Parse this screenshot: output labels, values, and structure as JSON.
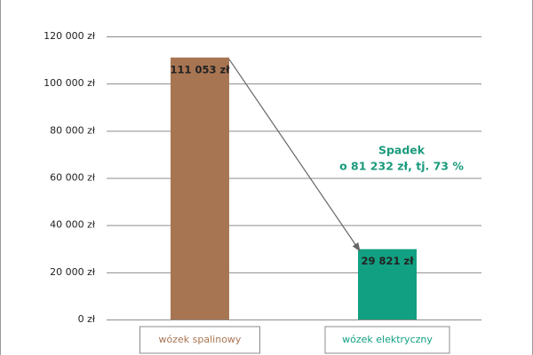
{
  "chart_data": {
    "type": "bar",
    "categories": [
      "wózek spalinowy",
      "wózek elektryczny"
    ],
    "values": [
      111053,
      29821
    ],
    "value_labels": [
      "111 053 zł",
      "29 821 zł"
    ],
    "colors": [
      "#a87552",
      "#12a082"
    ],
    "ylim": [
      0,
      120000
    ],
    "yticks": [
      {
        "value": 0,
        "label": "0 zł"
      },
      {
        "value": 20000,
        "label": "20 000 zł"
      },
      {
        "value": 40000,
        "label": "40 000 zł"
      },
      {
        "value": 60000,
        "label": "60 000 zł"
      },
      {
        "value": 80000,
        "label": "80 000 zł"
      },
      {
        "value": 100000,
        "label": "100 000 zł"
      },
      {
        "value": 120000,
        "label": "120 000 zł"
      }
    ],
    "grid": true,
    "annotation": [
      "Spadek",
      "o 81 232 zł, tj. 73 %"
    ],
    "annotation_color": "#1a9a7c"
  }
}
